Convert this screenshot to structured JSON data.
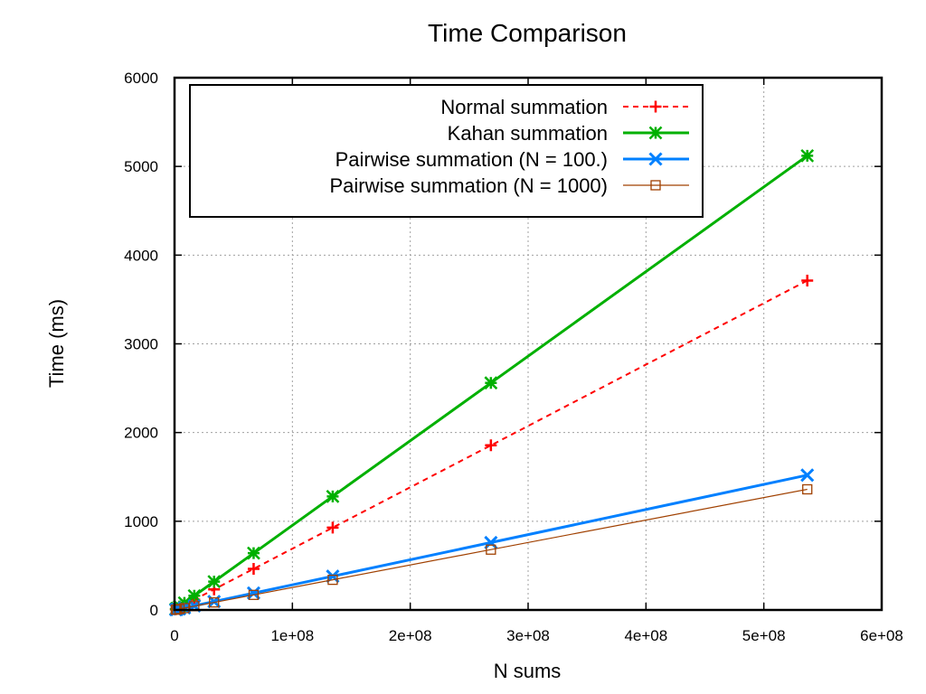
{
  "chart_data": {
    "type": "line",
    "title": "Time Comparison",
    "xlabel": "N sums",
    "ylabel": "Time (ms)",
    "xlim": [
      0,
      600000000
    ],
    "ylim": [
      0,
      6000
    ],
    "x_ticks": [
      0,
      100000000,
      200000000,
      300000000,
      400000000,
      500000000,
      600000000
    ],
    "x_tick_labels": [
      "0",
      "1e+08",
      "2e+08",
      "3e+08",
      "4e+08",
      "5e+08",
      "6e+08"
    ],
    "y_ticks": [
      0,
      1000,
      2000,
      3000,
      4000,
      5000,
      6000
    ],
    "y_tick_labels": [
      "0",
      "1000",
      "2000",
      "3000",
      "4000",
      "5000",
      "6000"
    ],
    "grid": true,
    "legend_position": "top-left",
    "x": [
      1048576,
      2097152,
      4194304,
      8388608,
      16777216,
      33554432,
      67108864,
      134217728,
      268435456,
      536870912
    ],
    "series": [
      {
        "name": "Normal summation",
        "color": "#ff0000",
        "line_style": "dashed",
        "marker": "plus",
        "values": [
          8,
          15,
          30,
          58,
          116,
          232,
          464,
          928,
          1856,
          3713
        ]
      },
      {
        "name": "Kahan summation",
        "color": "#00b000",
        "line_style": "solid",
        "marker": "star",
        "values": [
          10,
          20,
          40,
          80,
          160,
          320,
          640,
          1280,
          2560,
          5120
        ]
      },
      {
        "name": "Pairwise summation (N = 100.)",
        "color": "#0080ff",
        "line_style": "solid",
        "marker": "x",
        "values": [
          3,
          6,
          12,
          24,
          47,
          95,
          190,
          380,
          760,
          1520
        ]
      },
      {
        "name": "Pairwise summation (N = 1000)",
        "color": "#a04000",
        "line_style": "solid-thin",
        "marker": "open-square",
        "values": [
          3,
          5,
          11,
          21,
          43,
          85,
          170,
          340,
          680,
          1360
        ]
      }
    ]
  }
}
